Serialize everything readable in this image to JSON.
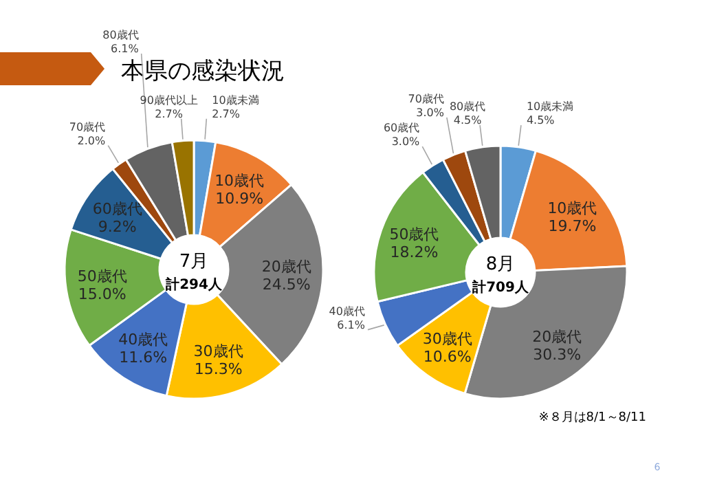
{
  "chart_data": [
    {
      "type": "donut",
      "title": "本県の感染状況",
      "categories": [
        "10歳未満",
        "10歳代",
        "20歳代",
        "30歳代",
        "40歳代",
        "50歳代",
        "60歳代",
        "70歳代",
        "80歳代",
        "90歳代以上"
      ],
      "values": [
        2.7,
        10.9,
        24.5,
        15.3,
        11.6,
        15.0,
        9.2,
        2.0,
        6.1,
        2.7
      ],
      "value_labels": [
        "2.7%",
        "10.9%",
        "24.5%",
        "15.3%",
        "11.6%",
        "15.0%",
        "9.2%",
        "2.0%",
        "6.1%",
        "2.7%"
      ],
      "colors": [
        "#5b9bd5",
        "#ed7d31",
        "#7f7f7f",
        "#ffc000",
        "#4472c4",
        "#70ad47",
        "#255e91",
        "#9e480e",
        "#636363",
        "#997300"
      ],
      "annotations": [
        "7月",
        "計294人"
      ]
    },
    {
      "type": "donut",
      "categories": [
        "10歳未満",
        "10歳代",
        "20歳代",
        "30歳代",
        "40歳代",
        "50歳代",
        "60歳代",
        "70歳代",
        "80歳代"
      ],
      "values": [
        4.5,
        19.7,
        30.3,
        10.6,
        6.1,
        18.2,
        3.0,
        3.0,
        4.5
      ],
      "value_labels": [
        "4.5%",
        "19.7%",
        "30.3%",
        "10.6%",
        "6.1%",
        "18.2%",
        "3.0%",
        "3.0%",
        "4.5%"
      ],
      "colors": [
        "#5b9bd5",
        "#ed7d31",
        "#7f7f7f",
        "#ffc000",
        "#4472c4",
        "#70ad47",
        "#255e91",
        "#9e480e",
        "#636363"
      ],
      "annotations": [
        "8月",
        "計709人",
        "※８月は8/1～8/11",
        "6"
      ]
    }
  ]
}
